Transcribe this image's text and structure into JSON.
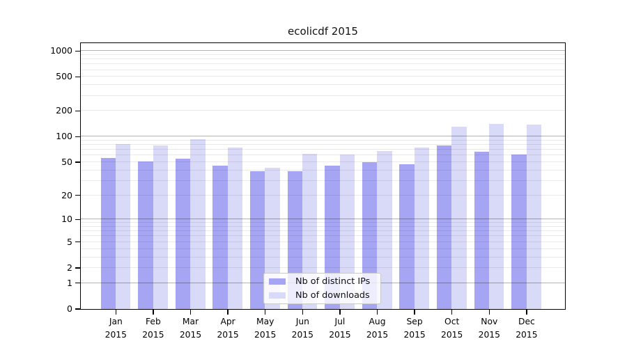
{
  "title": "ecolicdf 2015",
  "chart_data": {
    "type": "bar",
    "title": "ecolicdf 2015",
    "x_categories": [
      "Jan",
      "Feb",
      "Mar",
      "Apr",
      "May",
      "Jun",
      "Jul",
      "Aug",
      "Sep",
      "Oct",
      "Nov",
      "Dec"
    ],
    "x_sub_label": "2015",
    "series": [
      {
        "name": "Nb of distinct IPs",
        "color": "#a5a5f3",
        "values": [
          56,
          51,
          55,
          45,
          39,
          39,
          45,
          50,
          47,
          78,
          66,
          62
        ]
      },
      {
        "name": "Nb of downloads",
        "color": "#d9d9f8",
        "values": [
          81,
          79,
          94,
          74,
          43,
          63,
          61,
          68,
          75,
          130,
          140,
          138
        ]
      }
    ],
    "y_axis": {
      "scale": "log10(1+x)",
      "tick_labels": [
        "0",
        "1",
        "2",
        "5",
        "10",
        "20",
        "50",
        "100",
        "200",
        "500",
        "1000"
      ],
      "tick_values": [
        0,
        1,
        2,
        5,
        10,
        20,
        50,
        100,
        200,
        500,
        1000
      ],
      "max_value": 1218,
      "major_grid_values": [
        1,
        10,
        100,
        1000
      ],
      "minor_grid_values": [
        2,
        3,
        4,
        5,
        6,
        7,
        8,
        9,
        20,
        30,
        40,
        50,
        60,
        70,
        80,
        90,
        200,
        300,
        400,
        500,
        600,
        700,
        800,
        900
      ]
    },
    "legend": {
      "entries": [
        "Nb of distinct IPs",
        "Nb of downloads"
      ],
      "position": "lower center"
    },
    "grid": "horizontal",
    "colors": {
      "distinct_ips_bar": "#a5a5f3",
      "downloads_bar": "#d9d9f8",
      "major_grid": "#b2b2b2",
      "minor_grid": "#eaeaea",
      "axis_frame": "#000000",
      "title_text": "#111111"
    }
  }
}
